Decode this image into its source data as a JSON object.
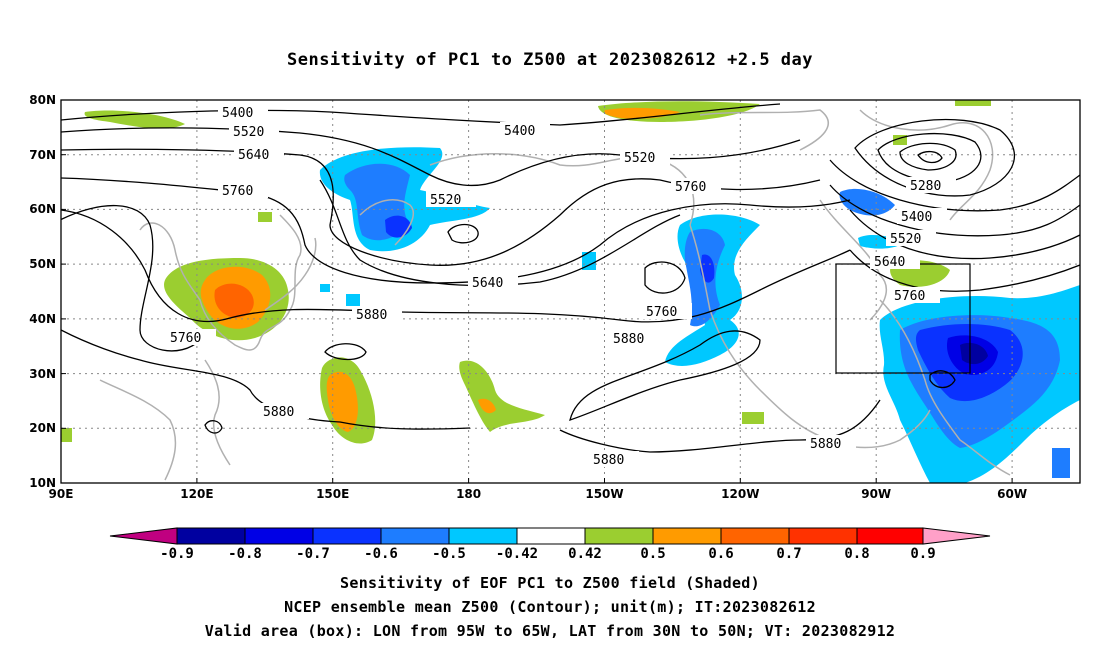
{
  "title": "Sensitivity of PC1 to Z500 at 2023082612 +2.5 day",
  "map": {
    "lat_labels": [
      "80N",
      "70N",
      "60N",
      "50N",
      "40N",
      "30N",
      "20N",
      "10N"
    ],
    "lon_labels": [
      "90E",
      "120E",
      "150E",
      "180",
      "150W",
      "120W",
      "90W",
      "60W"
    ],
    "contour_labels": [
      {
        "text": "5400"
      },
      {
        "text": "5520"
      },
      {
        "text": "5640"
      },
      {
        "text": "5760"
      },
      {
        "text": "5400"
      },
      {
        "text": "5520"
      },
      {
        "text": "5520"
      },
      {
        "text": "5760"
      },
      {
        "text": "5640"
      },
      {
        "text": "5880"
      },
      {
        "text": "5760"
      },
      {
        "text": "5760"
      },
      {
        "text": "5880"
      },
      {
        "text": "5880"
      },
      {
        "text": "5880"
      },
      {
        "text": "5880"
      },
      {
        "text": "5280"
      },
      {
        "text": "5400"
      },
      {
        "text": "5520"
      },
      {
        "text": "5640"
      },
      {
        "text": "5760"
      }
    ],
    "valid_box": {
      "lon_from": "95W",
      "lon_to": "65W",
      "lat_from": "30N",
      "lat_to": "50N"
    }
  },
  "colorbar": {
    "colors": [
      "#c00080",
      "#0000a0",
      "#0000e6",
      "#0a32ff",
      "#1e7dff",
      "#00c8ff",
      "#ffffff",
      "#9bce30",
      "#ff9b00",
      "#ff6400",
      "#ff3200",
      "#ff0000",
      "#ffa0c8"
    ],
    "labels": [
      "-0.9",
      "-0.8",
      "-0.7",
      "-0.6",
      "-0.5",
      "-0.42",
      "0.42",
      "0.5",
      "0.6",
      "0.7",
      "0.8",
      "0.9"
    ]
  },
  "captions": {
    "line1": "Sensitivity of EOF PC1 to Z500 field (Shaded)",
    "line2": "NCEP ensemble mean Z500 (Contour); unit(m); IT:2023082612",
    "line3": "Valid area (box): LON from 95W to 65W, LAT from 30N to 50N; VT: 2023082912"
  }
}
